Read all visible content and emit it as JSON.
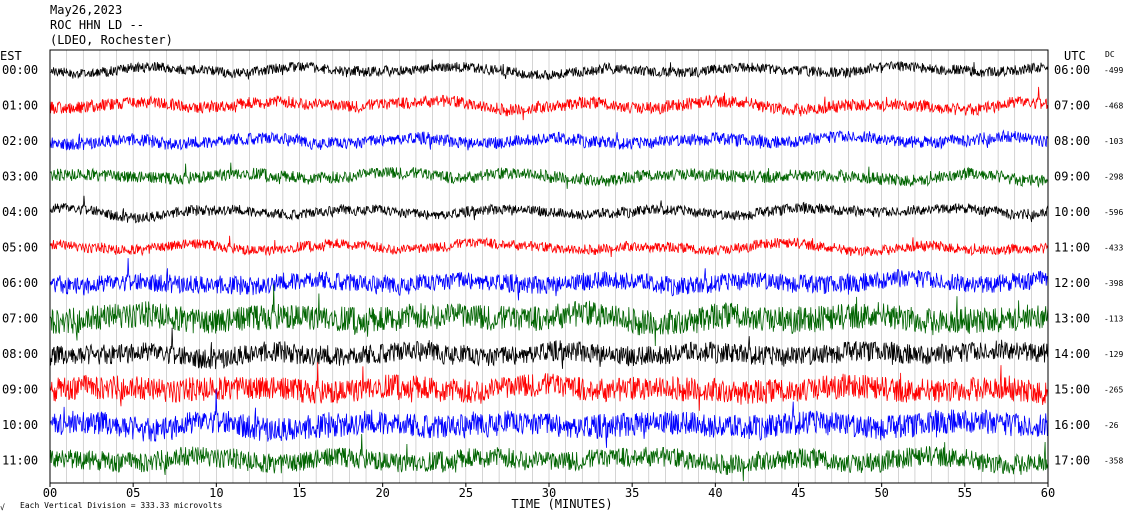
{
  "header": {
    "date": "May26,2023",
    "station": "ROC HHN LD --",
    "network": "(LDEO, Rochester)"
  },
  "chart_data": {
    "type": "line",
    "title": "ROC HHN LD --",
    "xlabel": "TIME (MINUTES)",
    "left_axis_label": "EST",
    "right_axis_label": "UTC",
    "dc_label": "DC",
    "xlim": [
      0,
      60
    ],
    "x_ticks": [
      "00",
      "05",
      "10",
      "15",
      "20",
      "25",
      "30",
      "35",
      "40",
      "45",
      "50",
      "55",
      "60"
    ],
    "grid": true,
    "footer_note": "Each Vertical Division = 333.33 microvolts",
    "footer_mark": "√",
    "series_colors": [
      "#000000",
      "#ff0000",
      "#0000ff",
      "#006400"
    ],
    "rows": [
      {
        "est": "00:00",
        "utc": "06:00",
        "dc": "-499",
        "color": "#000000",
        "noise": 5
      },
      {
        "est": "01:00",
        "utc": "07:00",
        "dc": "-468",
        "color": "#ff0000",
        "noise": 6
      },
      {
        "est": "02:00",
        "utc": "08:00",
        "dc": "-103",
        "color": "#0000ff",
        "noise": 6
      },
      {
        "est": "03:00",
        "utc": "09:00",
        "dc": "-298",
        "color": "#006400",
        "noise": 6
      },
      {
        "est": "04:00",
        "utc": "10:00",
        "dc": "-596",
        "color": "#000000",
        "noise": 5
      },
      {
        "est": "05:00",
        "utc": "11:00",
        "dc": "-433",
        "color": "#ff0000",
        "noise": 5
      },
      {
        "est": "06:00",
        "utc": "12:00",
        "dc": "-398",
        "color": "#0000ff",
        "noise": 9
      },
      {
        "est": "07:00",
        "utc": "13:00",
        "dc": "-113",
        "color": "#006400",
        "noise": 13
      },
      {
        "est": "08:00",
        "utc": "14:00",
        "dc": "-129",
        "color": "#000000",
        "noise": 10
      },
      {
        "est": "09:00",
        "utc": "15:00",
        "dc": "-265",
        "color": "#ff0000",
        "noise": 12
      },
      {
        "est": "10:00",
        "utc": "16:00",
        "dc": "-26",
        "color": "#0000ff",
        "noise": 12
      },
      {
        "est": "11:00",
        "utc": "17:00",
        "dc": "-358",
        "color": "#006400",
        "noise": 10
      }
    ]
  }
}
